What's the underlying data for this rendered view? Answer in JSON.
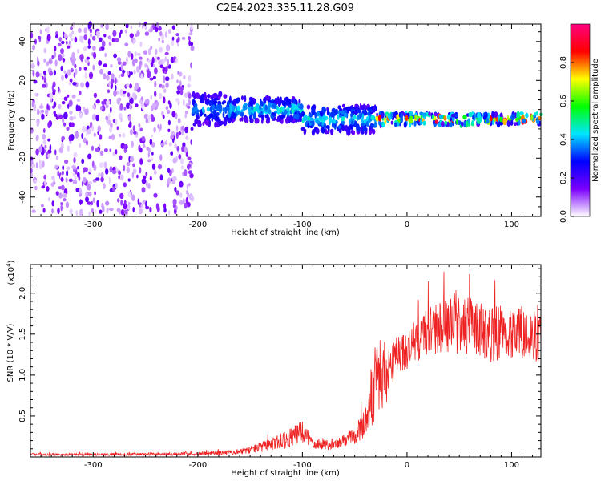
{
  "title": "C2E4.2023.335.11.28.G09",
  "chart_data": [
    {
      "type": "heatmap",
      "name": "spectrogram",
      "xlabel": "Height of straight line (km)",
      "ylabel": "Frequency (Hz)",
      "xlim": [
        -360,
        128
      ],
      "ylim": [
        -50,
        49
      ],
      "xticks": [
        -300,
        -200,
        -100,
        0,
        100
      ],
      "yticks": [
        -40,
        -20,
        0,
        20,
        40
      ],
      "colorbar": {
        "label": "Normalized spectral amplitude",
        "range": [
          0,
          1
        ],
        "ticks": [
          0.0,
          0.2,
          0.4,
          0.6,
          0.8
        ],
        "colormap": [
          "#ffffff",
          "#7b00ff",
          "#0000ff",
          "#00e5ff",
          "#00ff00",
          "#ffff00",
          "#ff0000",
          "#ff0080"
        ]
      },
      "bands": [
        {
          "x_start": -360,
          "x_end": -205,
          "freq_center": 0,
          "freq_halfwidth": 49,
          "amplitude": 0.15,
          "note": "broadband noise"
        },
        {
          "x_start": -205,
          "x_end": -170,
          "freq_center": 5,
          "freq_halfwidth": 8,
          "amplitude": 0.3
        },
        {
          "x_start": -170,
          "x_end": -100,
          "freq_center": 5,
          "freq_halfwidth": 6,
          "amplitude": 0.35
        },
        {
          "x_start": -100,
          "x_end": -30,
          "freq_center": 0,
          "freq_halfwidth": 7,
          "amplitude": 0.35
        },
        {
          "x_start": -30,
          "x_end": 128,
          "freq_center": 0,
          "freq_halfwidth": 3,
          "amplitude": 0.8,
          "note": "carrier line"
        }
      ]
    },
    {
      "type": "line",
      "name": "snr",
      "xlabel": "Height of straight line (km)",
      "ylabel": "SNR (10 * V/V)",
      "multiplier": "(x10",
      "multiplier_exp": "4",
      "multiplier_close": ")",
      "xlim": [
        -360,
        128
      ],
      "ylim": [
        0,
        2.35
      ],
      "xticks": [
        -300,
        -200,
        -100,
        0,
        100
      ],
      "yticks": [
        0.5,
        1.0,
        1.5,
        2.0
      ],
      "color": "#ee2222",
      "envelope": {
        "x": [
          -360,
          -300,
          -200,
          -160,
          -130,
          -110,
          -100,
          -90,
          -70,
          -50,
          -40,
          -30,
          -20,
          -15,
          -10,
          0,
          20,
          40,
          60,
          80,
          100,
          128
        ],
        "y": [
          0.03,
          0.03,
          0.04,
          0.06,
          0.15,
          0.24,
          0.3,
          0.18,
          0.14,
          0.26,
          0.42,
          0.95,
          1.0,
          1.05,
          1.25,
          1.3,
          1.55,
          1.6,
          1.6,
          1.5,
          1.55,
          1.45
        ],
        "noise": [
          0.015,
          0.015,
          0.02,
          0.03,
          0.08,
          0.12,
          0.15,
          0.08,
          0.06,
          0.1,
          0.2,
          0.5,
          0.4,
          0.3,
          0.25,
          0.25,
          0.3,
          0.35,
          0.35,
          0.35,
          0.35,
          0.3
        ]
      }
    }
  ]
}
